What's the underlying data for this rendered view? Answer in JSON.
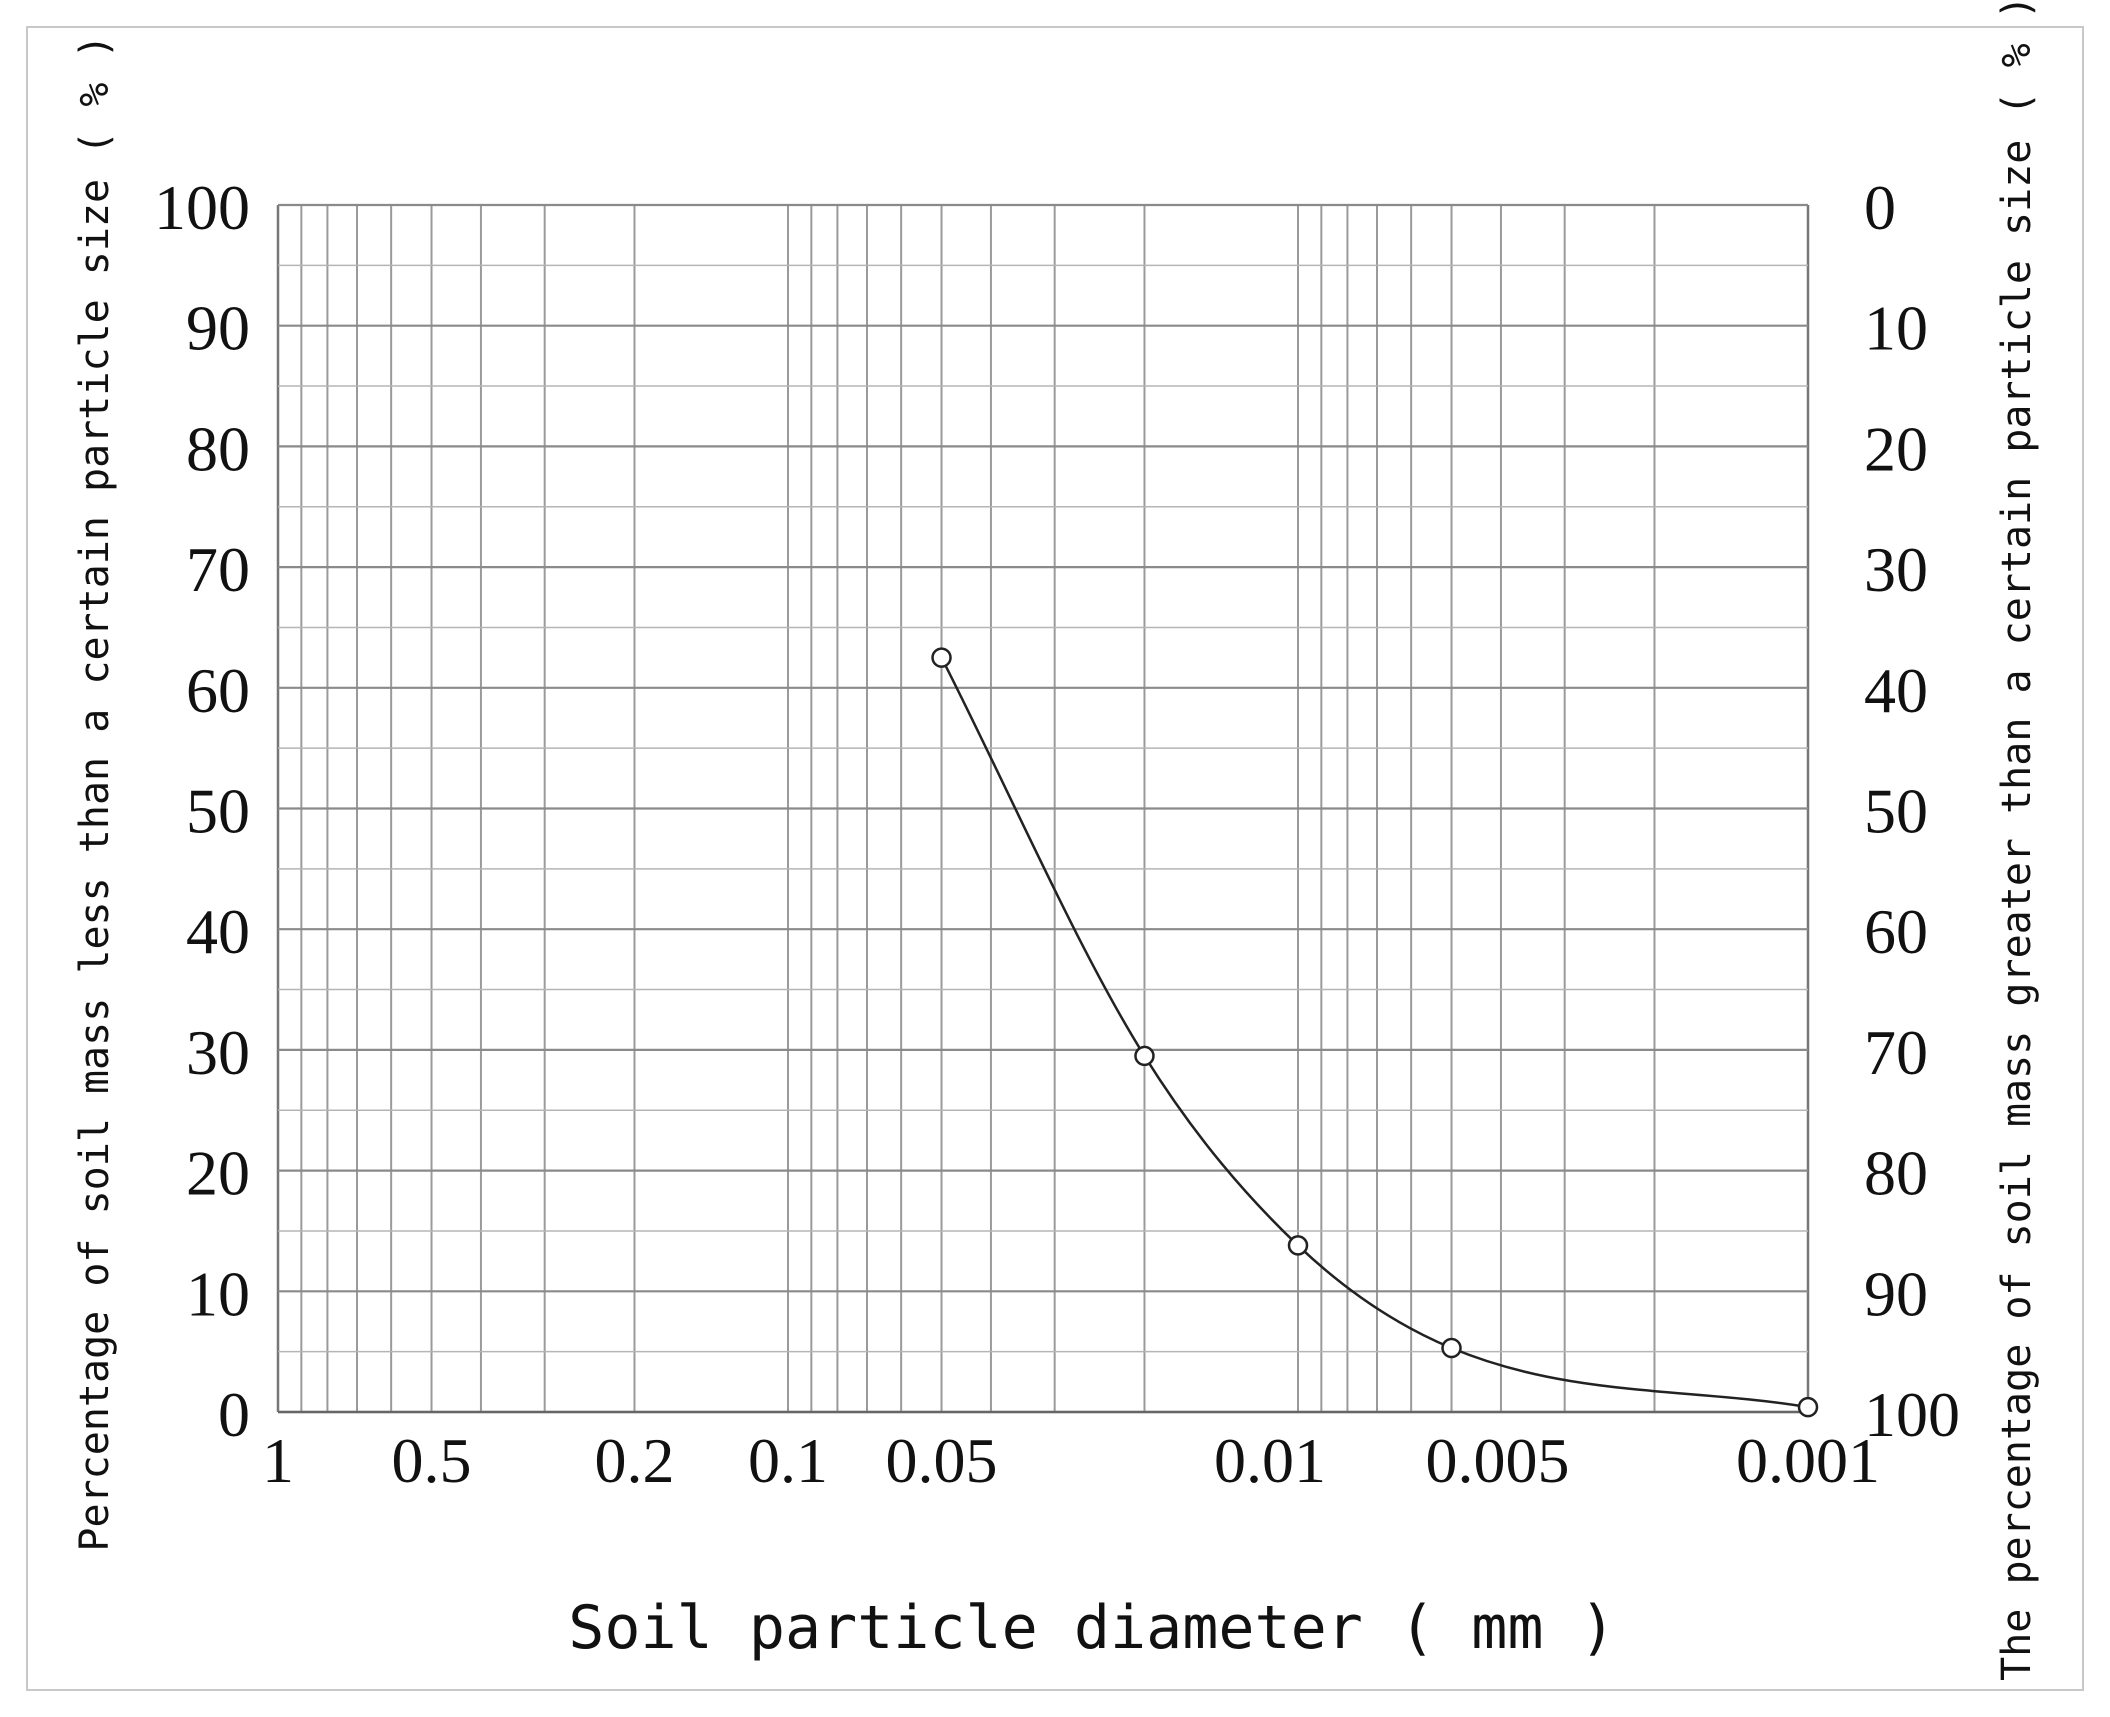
{
  "chart_data": {
    "type": "line",
    "title": "",
    "xlabel": "Soil particle diameter ( mm )",
    "ylabel_left": "Percentage of soil mass less than a certain particle size ( % )",
    "ylabel_right": "The percentage of soil mass greater than a certain particle size ( % )",
    "x_scale": "log",
    "x_reversed": true,
    "xlim": [
      1,
      0.001
    ],
    "ylim": [
      0,
      100
    ],
    "grid": true,
    "x_ticks": [
      {
        "value": 1,
        "label": "1"
      },
      {
        "value": 0.5,
        "label": "0.5"
      },
      {
        "value": 0.2,
        "label": "0.2"
      },
      {
        "value": 0.1,
        "label": "0.1"
      },
      {
        "value": 0.05,
        "label": "0.05"
      },
      {
        "value": 0.01,
        "label": "0.01"
      },
      {
        "value": 0.005,
        "label": "0.005"
      },
      {
        "value": 0.001,
        "label": "0.001"
      }
    ],
    "y_ticks_left": [
      "0",
      "10",
      "20",
      "30",
      "40",
      "50",
      "60",
      "70",
      "80",
      "90",
      "100"
    ],
    "y_ticks_right": [
      "100",
      "90",
      "80",
      "70",
      "60",
      "50",
      "40",
      "30",
      "20",
      "10",
      "0"
    ],
    "series": [
      {
        "marker": "open-circle",
        "color": "#222222",
        "points": [
          {
            "x": 0.05,
            "y": 62.5
          },
          {
            "x": 0.02,
            "y": 29.5
          },
          {
            "x": 0.01,
            "y": 13.8
          },
          {
            "x": 0.005,
            "y": 5.3
          },
          {
            "x": 0.001,
            "y": 0.4
          }
        ]
      }
    ]
  }
}
